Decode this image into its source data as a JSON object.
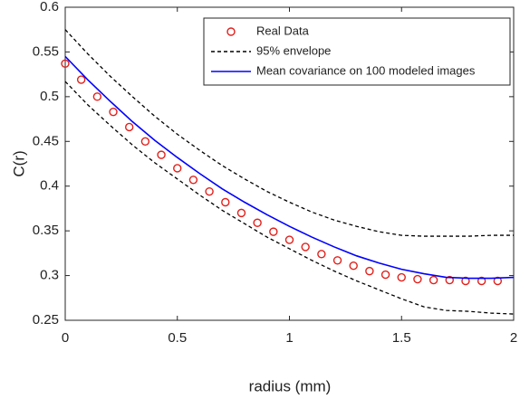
{
  "chart_data": {
    "type": "line",
    "xlabel": "radius (mm)",
    "ylabel": "C(r)",
    "xlim": [
      0,
      2
    ],
    "ylim": [
      0.25,
      0.6
    ],
    "xticks": [
      0,
      0.5,
      1,
      1.5,
      2
    ],
    "yticks": [
      0.25,
      0.3,
      0.35,
      0.4,
      0.45,
      0.5,
      0.55,
      0.6
    ],
    "legend": "top-right",
    "series": [
      {
        "name": "Real Data",
        "kind": "scatter",
        "color": "#e0201b",
        "x": [
          0,
          0.0714,
          0.1429,
          0.2143,
          0.2857,
          0.3571,
          0.4286,
          0.5,
          0.5714,
          0.6429,
          0.7143,
          0.7857,
          0.8571,
          0.9286,
          1,
          1.0714,
          1.1429,
          1.2143,
          1.2857,
          1.3571,
          1.4286,
          1.5,
          1.5714,
          1.6429,
          1.7143,
          1.7857,
          1.8571,
          1.9286
        ],
        "values": [
          0.537,
          0.519,
          0.5,
          0.483,
          0.466,
          0.45,
          0.435,
          0.42,
          0.407,
          0.394,
          0.382,
          0.37,
          0.359,
          0.349,
          0.34,
          0.332,
          0.324,
          0.317,
          0.311,
          0.305,
          0.301,
          0.298,
          0.296,
          0.295,
          0.295,
          0.294,
          0.294,
          0.294
        ]
      },
      {
        "name": "95% envelope",
        "kind": "envelope",
        "color": "#000000",
        "x": [
          0,
          0.1,
          0.2,
          0.3,
          0.4,
          0.5,
          0.6,
          0.7,
          0.8,
          0.9,
          1,
          1.1,
          1.2,
          1.3,
          1.4,
          1.5,
          1.6,
          1.7,
          1.8,
          1.9,
          2
        ],
        "upper": [
          0.575,
          0.548,
          0.523,
          0.5,
          0.478,
          0.458,
          0.44,
          0.423,
          0.408,
          0.394,
          0.382,
          0.371,
          0.362,
          0.355,
          0.349,
          0.345,
          0.344,
          0.344,
          0.344,
          0.345,
          0.345
        ],
        "lower": [
          0.517,
          0.491,
          0.468,
          0.446,
          0.426,
          0.408,
          0.39,
          0.373,
          0.358,
          0.343,
          0.33,
          0.317,
          0.305,
          0.294,
          0.284,
          0.274,
          0.265,
          0.261,
          0.26,
          0.258,
          0.257
        ]
      },
      {
        "name": "Mean covariance on 100 modeled images",
        "kind": "line",
        "color": "#0000ff",
        "x": [
          0,
          0.1,
          0.2,
          0.3,
          0.4,
          0.5,
          0.6,
          0.7,
          0.8,
          0.9,
          1,
          1.1,
          1.2,
          1.3,
          1.4,
          1.5,
          1.6,
          1.7,
          1.8,
          1.9,
          2
        ],
        "values": [
          0.545,
          0.519,
          0.495,
          0.472,
          0.451,
          0.432,
          0.414,
          0.397,
          0.382,
          0.368,
          0.355,
          0.343,
          0.332,
          0.322,
          0.314,
          0.307,
          0.302,
          0.298,
          0.297,
          0.297,
          0.298
        ]
      }
    ]
  }
}
